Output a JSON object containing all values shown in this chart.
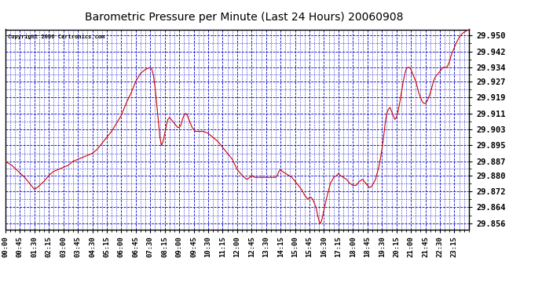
{
  "title": "Barometric Pressure per Minute (Last 24 Hours) 20060908",
  "copyright": "Copyright 2006 Cartronics.com",
  "background_color": "#ffffff",
  "plot_bg_color": "#ffffff",
  "line_color": "#cc0000",
  "grid_color": "#0000cc",
  "border_color": "#000000",
  "y_tick_labels": [
    29.856,
    29.864,
    29.872,
    29.88,
    29.887,
    29.895,
    29.903,
    29.911,
    29.919,
    29.927,
    29.934,
    29.942,
    29.95
  ],
  "y_min": 29.853,
  "y_max": 29.953,
  "x_tick_labels": [
    "00:00",
    "00:45",
    "01:30",
    "02:15",
    "03:00",
    "03:45",
    "04:30",
    "05:15",
    "06:00",
    "06:45",
    "07:30",
    "08:15",
    "09:00",
    "09:45",
    "10:30",
    "11:15",
    "12:00",
    "12:45",
    "13:30",
    "14:15",
    "15:00",
    "15:45",
    "16:30",
    "17:15",
    "18:00",
    "18:45",
    "19:30",
    "20:15",
    "21:00",
    "21:45",
    "22:30",
    "23:15"
  ]
}
